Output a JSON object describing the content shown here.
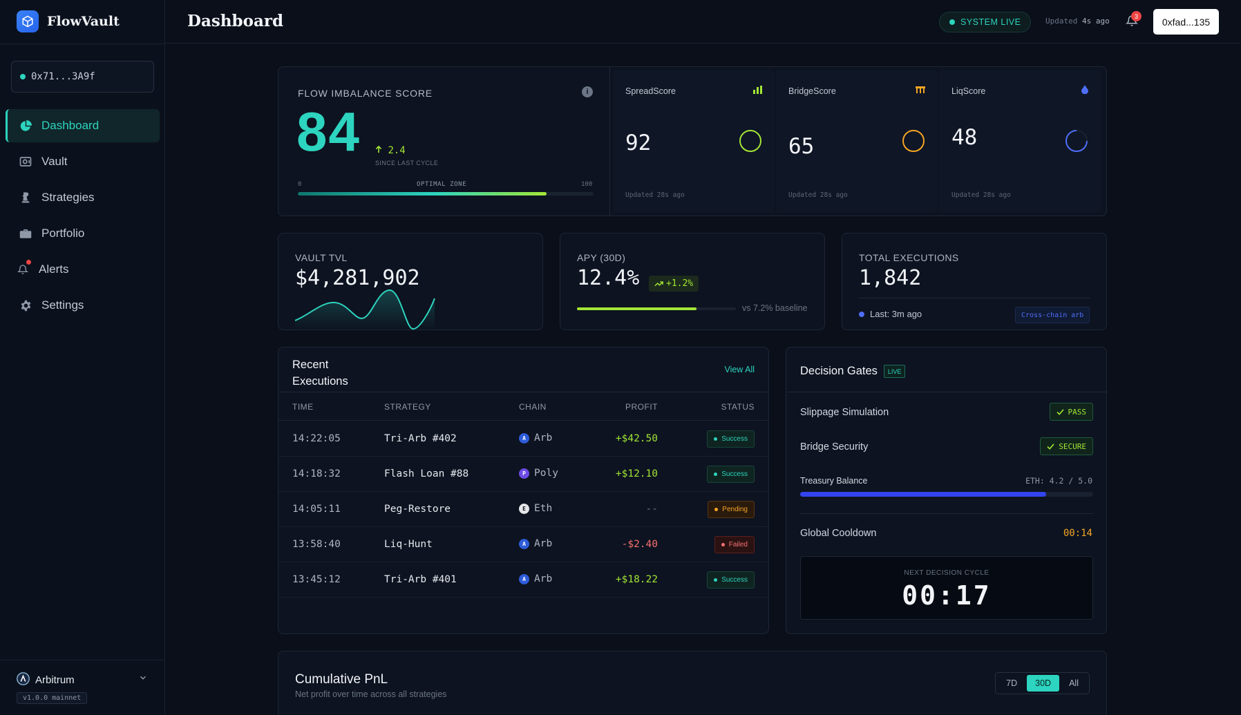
{
  "brand": {
    "name": "FlowVault"
  },
  "sidebar": {
    "wallet": "0x71...3A9f",
    "items": [
      {
        "label": "Dashboard",
        "icon": "pie-chart-icon"
      },
      {
        "label": "Vault",
        "icon": "vault-icon"
      },
      {
        "label": "Strategies",
        "icon": "chess-icon"
      },
      {
        "label": "Portfolio",
        "icon": "briefcase-icon"
      },
      {
        "label": "Alerts",
        "icon": "bell-icon"
      },
      {
        "label": "Settings",
        "icon": "gear-icon"
      }
    ],
    "network": "Arbitrum",
    "version": "v1.0.0 mainnet"
  },
  "header": {
    "title": "Dashboard",
    "status": "SYSTEM LIVE",
    "updated_prefix": "Updated",
    "updated_value": "4s ago",
    "notifications": "3",
    "wallet_button": "0xfad...135"
  },
  "flow": {
    "label": "FLOW IMBALANCE SCORE",
    "score": "84",
    "delta": "2.4",
    "delta_note": "SINCE LAST CYCLE",
    "scale_min": "0",
    "scale_zone": "OPTIMAL ZONE",
    "scale_max": "100",
    "fill_fraction": 0.84,
    "subscores": [
      {
        "name": "SpreadScore",
        "value": "92",
        "updated": "Updated 28s ago",
        "color": "#a3e635"
      },
      {
        "name": "BridgeScore",
        "value": "65",
        "updated": "Updated 28s ago",
        "color": "#f5a524"
      },
      {
        "name": "LiqScore",
        "value": "48",
        "updated": "Updated 28s ago",
        "color": "#4f6ef7"
      }
    ]
  },
  "kpis": {
    "tvl": {
      "label": "VAULT TVL",
      "value": "$4,281,902"
    },
    "apy": {
      "label": "APY (30D)",
      "value": "12.4%",
      "badge": "+1.2%",
      "baseline": "vs 7.2% baseline",
      "fill_fraction": 0.75
    },
    "executions": {
      "label": "TOTAL EXECUTIONS",
      "value": "1,842",
      "last": "Last: 3m ago",
      "tag": "Cross-chain arb"
    }
  },
  "recent": {
    "title": "Recent Executions",
    "view_all": "View All",
    "columns": [
      "TIME",
      "STRATEGY",
      "CHAIN",
      "PROFIT",
      "STATUS"
    ],
    "rows": [
      {
        "time": "14:22:05",
        "strategy": "Tri-Arb #402",
        "chain": "Arb",
        "chain_letter": "A",
        "profit": "+$42.50",
        "status": "Success"
      },
      {
        "time": "14:18:32",
        "strategy": "Flash Loan #88",
        "chain": "Poly",
        "chain_letter": "P",
        "profit": "+$12.10",
        "status": "Success"
      },
      {
        "time": "14:05:11",
        "strategy": "Peg-Restore",
        "chain": "Eth",
        "chain_letter": "E",
        "profit": "--",
        "status": "Pending"
      },
      {
        "time": "13:58:40",
        "strategy": "Liq-Hunt",
        "chain": "Arb",
        "chain_letter": "A",
        "profit": "-$2.40",
        "status": "Failed"
      },
      {
        "time": "13:45:12",
        "strategy": "Tri-Arb #401",
        "chain": "Arb",
        "chain_letter": "A",
        "profit": "+$18.22",
        "status": "Success"
      }
    ]
  },
  "gates": {
    "title": "Decision Gates",
    "live": "LIVE",
    "slippage": {
      "label": "Slippage Simulation",
      "badge": "PASS"
    },
    "bridge": {
      "label": "Bridge Security",
      "badge": "SECURE"
    },
    "treasury": {
      "label": "Treasury Balance",
      "value": "ETH: 4.2 / 5.0",
      "fill_fraction": 0.84
    },
    "cooldown": {
      "label": "Global Cooldown",
      "value": "00:14"
    },
    "next": {
      "label": "NEXT DECISION CYCLE",
      "value": "00:17"
    }
  },
  "pnl": {
    "title": "Cumulative PnL",
    "subtitle": "Net profit over time across all strategies",
    "ranges": [
      "7D",
      "30D",
      "All"
    ],
    "selected": "30D"
  }
}
